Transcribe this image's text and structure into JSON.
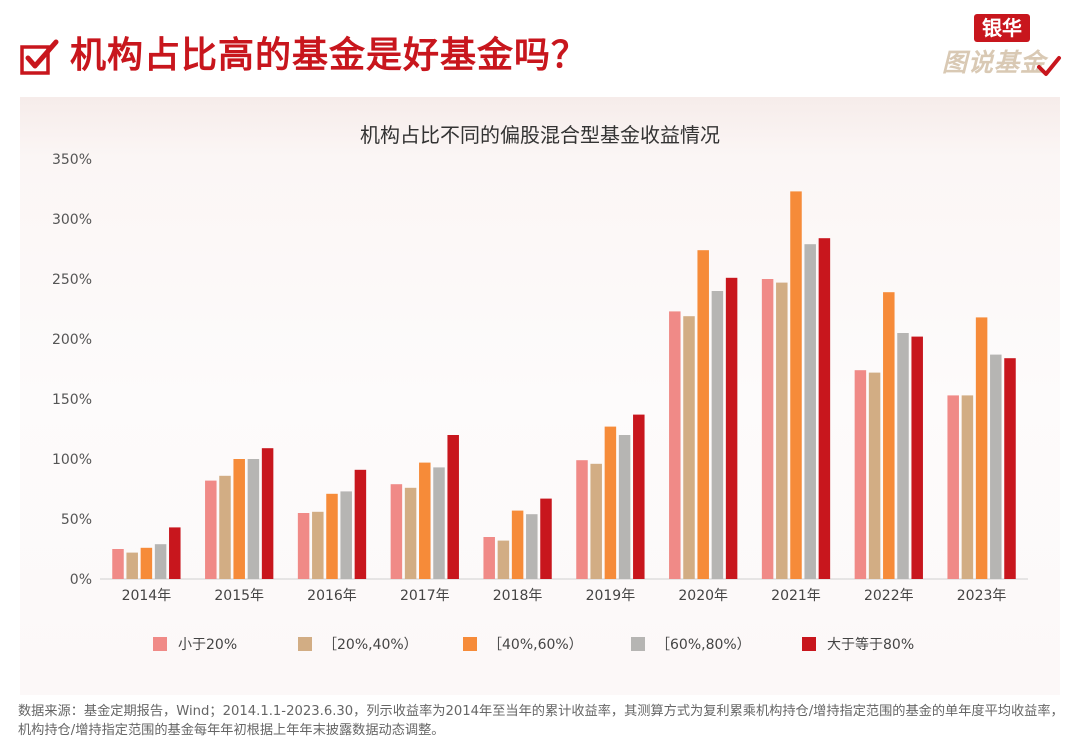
{
  "page": {
    "title": "机构占比高的基金是好基金吗？",
    "brand_top": "银华",
    "brand_bottom": "图说基金",
    "footnote": "数据来源：基金定期报告，Wind；2014.1.1-2023.6.30，列示收益率为2014年至当年的累计收益率，其测算方式为复利累乘机构持仓/增持指定范围的基金的单年度平均收益率，机构持仓/增持指定范围的基金每年年初根据上年年末披露数据动态调整。"
  },
  "colors": {
    "accent": "#c8161d",
    "brand_light": "#d9c9b4"
  },
  "icons": {
    "title_icon": "checkbox-icon",
    "brand_icon": "check-icon"
  },
  "chart_data": {
    "type": "bar",
    "title": "机构占比不同的偏股混合型基金收益情况",
    "xlabel": "",
    "ylabel": "",
    "categories": [
      "2014年",
      "2015年",
      "2016年",
      "2017年",
      "2018年",
      "2019年",
      "2020年",
      "2021年",
      "2022年",
      "2023年"
    ],
    "ylim": [
      0,
      350
    ],
    "yticks": [
      0,
      50,
      100,
      150,
      200,
      250,
      300,
      350
    ],
    "ytick_labels": [
      "0%",
      "50%",
      "100%",
      "150%",
      "200%",
      "250%",
      "300%",
      "350%"
    ],
    "grid": false,
    "legend_position": "bottom",
    "series": [
      {
        "name": "小于20%",
        "color": "#f08a87",
        "values": [
          25,
          82,
          55,
          79,
          35,
          99,
          223,
          250,
          174,
          153
        ]
      },
      {
        "name": "［20%,40%）",
        "color": "#d2ad84",
        "values": [
          22,
          86,
          56,
          76,
          32,
          96,
          219,
          247,
          172,
          153
        ]
      },
      {
        "name": "［40%,60%）",
        "color": "#f68b39",
        "values": [
          26,
          100,
          71,
          97,
          57,
          127,
          274,
          323,
          239,
          218
        ]
      },
      {
        "name": "［60%,80%）",
        "color": "#b6b5b3",
        "values": [
          29,
          100,
          73,
          93,
          54,
          120,
          240,
          279,
          205,
          187
        ]
      },
      {
        "name": "大于等于80%",
        "color": "#c8161d",
        "values": [
          43,
          109,
          91,
          120,
          67,
          137,
          251,
          284,
          202,
          184
        ]
      }
    ]
  }
}
